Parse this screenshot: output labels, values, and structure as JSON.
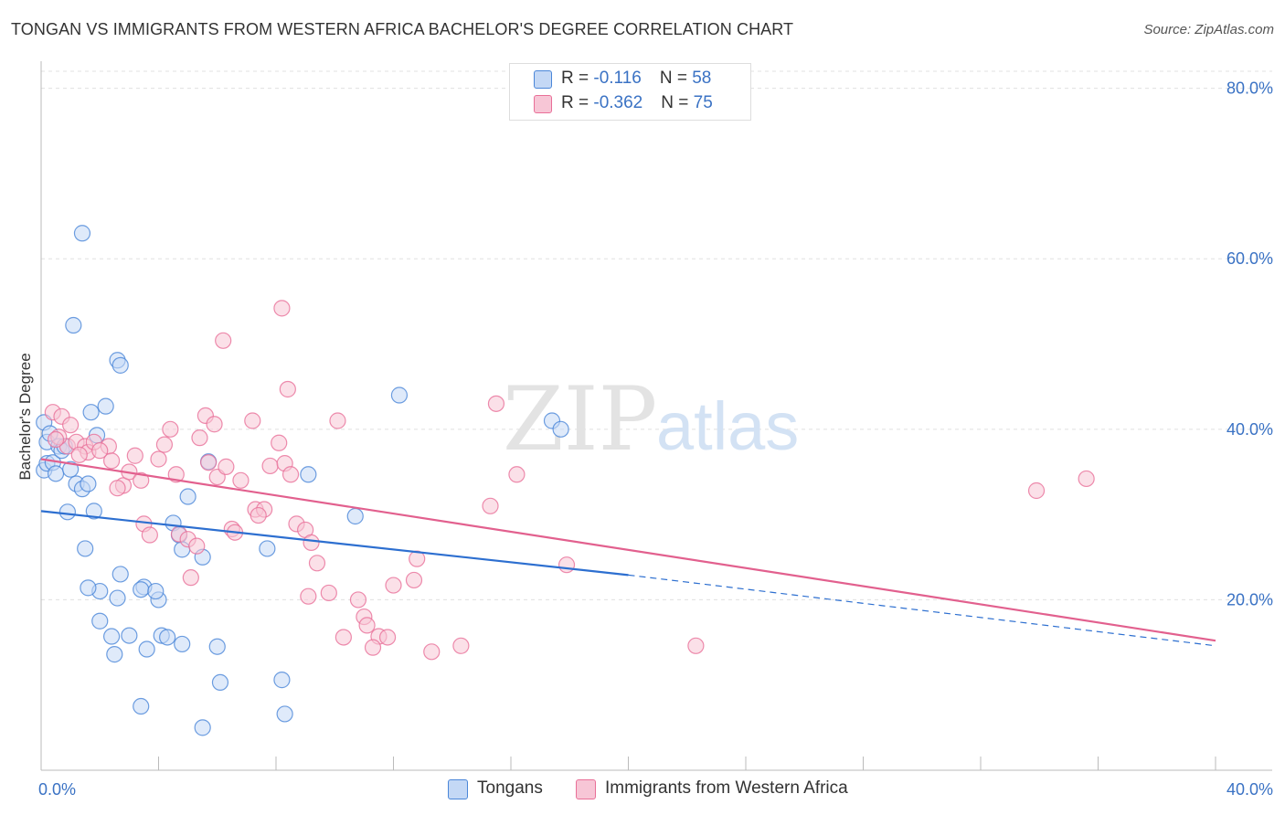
{
  "title": "TONGAN VS IMMIGRANTS FROM WESTERN AFRICA BACHELOR'S DEGREE CORRELATION CHART",
  "source": "Source: ZipAtlas.com",
  "watermark": {
    "zip": "ZIP",
    "atlas": "atlas"
  },
  "colors": {
    "blue": "#4a86d8",
    "blue_fill": "#c4d8f5",
    "blue_line": "#2d6fd0",
    "pink": "#e96f98",
    "pink_fill": "#f7c6d6",
    "pink_line": "#e2608e",
    "axis_text": "#3a72c4",
    "grid": "#e0e0e0"
  },
  "legend": {
    "items": [
      {
        "r_label": "R = ",
        "r_value": "-0.116",
        "n_label": "N = ",
        "n_value": "58"
      },
      {
        "r_label": "R = ",
        "r_value": "-0.362",
        "n_label": "N = ",
        "n_value": "75"
      }
    ]
  },
  "bottom_legend": [
    {
      "label": "Tongans"
    },
    {
      "label": "Immigrants from Western Africa"
    }
  ],
  "chart_data": {
    "type": "scatter",
    "title": "TONGAN VS IMMIGRANTS FROM WESTERN AFRICA BACHELOR'S DEGREE CORRELATION CHART",
    "xlabel": "",
    "ylabel": "Bachelor's Degree",
    "xlim": [
      0,
      40
    ],
    "ylim": [
      0,
      82
    ],
    "x_tick_labels": [
      {
        "value": 0,
        "label": "0.0%"
      },
      {
        "value": 40,
        "label": "40.0%"
      }
    ],
    "y_tick_labels": [
      {
        "value": 20,
        "label": "20.0%"
      },
      {
        "value": 40,
        "label": "40.0%"
      },
      {
        "value": 60,
        "label": "60.0%"
      },
      {
        "value": 80,
        "label": "80.0%"
      }
    ],
    "y_grid": [
      20,
      40,
      60,
      80
    ],
    "x_minor_ticks": [
      4,
      8,
      12,
      16,
      20,
      24,
      28,
      32,
      36,
      40
    ],
    "series": [
      {
        "name": "Tongans",
        "color": "blue",
        "trend": {
          "x0": 0,
          "y0": 30.4,
          "x1": 20,
          "y1": 22.9,
          "dash_to": 40,
          "dash_y": 14.6
        },
        "points": [
          [
            0.1,
            40.8
          ],
          [
            0.2,
            38.5
          ],
          [
            0.1,
            35.2
          ],
          [
            0.2,
            36.0
          ],
          [
            0.3,
            39.5
          ],
          [
            0.4,
            36.1
          ],
          [
            0.6,
            38.0
          ],
          [
            0.7,
            37.5
          ],
          [
            0.8,
            38.0
          ],
          [
            0.5,
            34.8
          ],
          [
            1.4,
            63.0
          ],
          [
            1.1,
            52.2
          ],
          [
            2.6,
            48.1
          ],
          [
            2.7,
            47.5
          ],
          [
            2.2,
            42.7
          ],
          [
            1.7,
            42.0
          ],
          [
            1.9,
            39.3
          ],
          [
            1.0,
            35.3
          ],
          [
            1.2,
            33.6
          ],
          [
            1.4,
            33.0
          ],
          [
            1.6,
            33.6
          ],
          [
            1.8,
            30.4
          ],
          [
            0.9,
            30.3
          ],
          [
            1.5,
            26.0
          ],
          [
            2.7,
            23.0
          ],
          [
            3.5,
            21.5
          ],
          [
            2.0,
            21.0
          ],
          [
            2.6,
            20.2
          ],
          [
            1.6,
            21.4
          ],
          [
            3.4,
            21.2
          ],
          [
            4.0,
            20.0
          ],
          [
            3.9,
            21.0
          ],
          [
            4.5,
            29.0
          ],
          [
            4.7,
            27.6
          ],
          [
            5.0,
            32.1
          ],
          [
            5.5,
            25.0
          ],
          [
            7.7,
            26.0
          ],
          [
            5.7,
            36.2
          ],
          [
            9.1,
            34.7
          ],
          [
            10.7,
            29.8
          ],
          [
            12.2,
            44.0
          ],
          [
            17.4,
            41.0
          ],
          [
            17.7,
            40.0
          ],
          [
            2.0,
            17.5
          ],
          [
            2.4,
            15.7
          ],
          [
            2.5,
            13.6
          ],
          [
            3.0,
            15.8
          ],
          [
            3.6,
            14.2
          ],
          [
            4.1,
            15.8
          ],
          [
            4.3,
            15.6
          ],
          [
            4.8,
            14.8
          ],
          [
            6.0,
            14.5
          ],
          [
            6.1,
            10.3
          ],
          [
            8.2,
            10.6
          ],
          [
            3.4,
            7.5
          ],
          [
            5.5,
            5.0
          ],
          [
            8.3,
            6.6
          ],
          [
            4.8,
            25.9
          ]
        ]
      },
      {
        "name": "Immigrants from Western Africa",
        "color": "pink",
        "trend": {
          "x0": 0,
          "y0": 36.5,
          "x1": 40,
          "y1": 15.2
        },
        "points": [
          [
            0.4,
            42.0
          ],
          [
            0.7,
            41.5
          ],
          [
            1.0,
            40.5
          ],
          [
            0.9,
            38.0
          ],
          [
            0.6,
            39.1
          ],
          [
            1.2,
            38.5
          ],
          [
            1.5,
            38.0
          ],
          [
            1.6,
            37.3
          ],
          [
            1.8,
            38.5
          ],
          [
            2.3,
            38.0
          ],
          [
            2.4,
            36.3
          ],
          [
            2.8,
            33.4
          ],
          [
            3.0,
            35.0
          ],
          [
            3.4,
            34.0
          ],
          [
            3.5,
            28.9
          ],
          [
            3.7,
            27.6
          ],
          [
            4.0,
            36.5
          ],
          [
            4.2,
            38.2
          ],
          [
            4.4,
            40.0
          ],
          [
            4.7,
            27.7
          ],
          [
            5.0,
            27.1
          ],
          [
            5.1,
            22.6
          ],
          [
            5.3,
            26.3
          ],
          [
            5.6,
            41.6
          ],
          [
            5.9,
            40.6
          ],
          [
            5.7,
            36.1
          ],
          [
            6.0,
            34.4
          ],
          [
            6.3,
            35.6
          ],
          [
            6.5,
            28.3
          ],
          [
            6.6,
            27.9
          ],
          [
            6.2,
            50.4
          ],
          [
            7.2,
            41.0
          ],
          [
            7.3,
            30.6
          ],
          [
            7.6,
            30.6
          ],
          [
            7.8,
            35.7
          ],
          [
            8.1,
            38.4
          ],
          [
            8.3,
            36.0
          ],
          [
            8.5,
            34.7
          ],
          [
            8.7,
            28.9
          ],
          [
            9.0,
            28.2
          ],
          [
            9.2,
            26.7
          ],
          [
            9.4,
            24.3
          ],
          [
            8.4,
            44.7
          ],
          [
            8.2,
            54.2
          ],
          [
            9.8,
            20.8
          ],
          [
            9.1,
            20.4
          ],
          [
            10.1,
            41.0
          ],
          [
            10.3,
            15.6
          ],
          [
            10.8,
            20.0
          ],
          [
            11.0,
            18.0
          ],
          [
            11.1,
            17.0
          ],
          [
            11.5,
            15.7
          ],
          [
            11.3,
            14.4
          ],
          [
            11.8,
            15.6
          ],
          [
            12.0,
            21.7
          ],
          [
            12.7,
            22.3
          ],
          [
            12.8,
            24.8
          ],
          [
            13.3,
            13.9
          ],
          [
            14.3,
            14.6
          ],
          [
            15.3,
            31.0
          ],
          [
            15.5,
            43.0
          ],
          [
            16.2,
            34.7
          ],
          [
            17.9,
            24.1
          ],
          [
            22.3,
            14.6
          ],
          [
            33.9,
            32.8
          ],
          [
            35.6,
            34.2
          ],
          [
            0.5,
            38.8
          ],
          [
            1.3,
            37.0
          ],
          [
            2.0,
            37.5
          ],
          [
            2.6,
            33.1
          ],
          [
            3.2,
            36.9
          ],
          [
            4.6,
            34.7
          ],
          [
            5.4,
            39.0
          ],
          [
            6.8,
            34.0
          ],
          [
            7.4,
            29.9
          ]
        ]
      }
    ]
  }
}
